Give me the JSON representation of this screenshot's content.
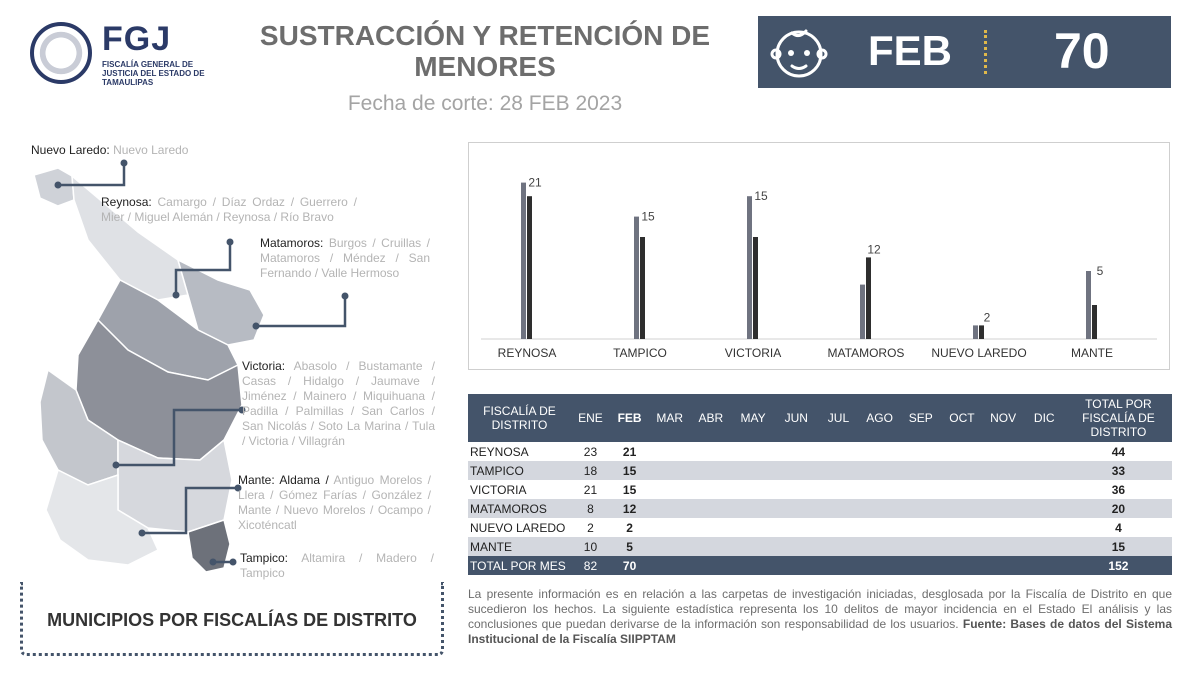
{
  "header": {
    "logo_abbr": "FGJ",
    "logo_sub": "FISCALÍA GENERAL DE JUSTICIA DEL ESTADO DE TAMAULIPAS",
    "title": "SUSTRACCIÓN Y RETENCIÓN DE MENORES",
    "cutoff": "Fecha de corte: 28 FEB 2023"
  },
  "kpi": {
    "month": "FEB",
    "value": "70",
    "icon": "baby-face-icon"
  },
  "colors": {
    "navy": "#44546a",
    "bar_prev": "#6f7380",
    "bar_cur": "#2e2e2e",
    "accent": "#e0b84a"
  },
  "regions": [
    {
      "name": "Nuevo Laredo:",
      "municipalities": "Nuevo Laredo"
    },
    {
      "name": "Reynosa:",
      "municipalities": "Camargo / Díaz Ordaz / Guerrero / Mier / Miguel Alemán / Reynosa / Río Bravo"
    },
    {
      "name": "Matamoros:",
      "municipalities": "Burgos / Cruillas / Matamoros / Méndez / San Fernando / Valle Hermoso"
    },
    {
      "name": "Victoria:",
      "municipalities": "Abasolo / Bustamante / Casas / Hidalgo / Jaumave / Jiménez / Mainero / Miquihuana / Padilla / Palmillas / San Carlos / San Nicolás / Soto La Marina / Tula / Victoria / Villagrán"
    },
    {
      "name": "Mante:",
      "first": "Aldama /",
      "municipalities": "Antiguo Morelos / Llera / Gómez Farías / González / Mante / Nuevo Morelos / Ocampo / Xicoténcatl"
    },
    {
      "name": "Tampico:",
      "municipalities": "Altamira / Madero / Tampico"
    }
  ],
  "map_caption": "MUNICIPIOS POR FISCALÍAS DE DISTRITO",
  "chart_data": {
    "type": "bar",
    "categories": [
      "REYNOSA",
      "TAMPICO",
      "VICTORIA",
      "MATAMOROS",
      "NUEVO LAREDO",
      "MANTE"
    ],
    "series": [
      {
        "values": [
          23,
          18,
          21,
          8,
          2,
          10
        ]
      },
      {
        "values": [
          21,
          15,
          15,
          12,
          2,
          5
        ]
      }
    ],
    "data_labels": [
      "21",
      "15",
      "15",
      "12",
      "2",
      "5"
    ],
    "ylim": [
      0,
      25
    ],
    "grid": false
  },
  "table": {
    "headers": [
      "FISCALÍA DE DISTRITO",
      "ENE",
      "FEB",
      "MAR",
      "ABR",
      "MAY",
      "JUN",
      "JUL",
      "AGO",
      "SEP",
      "OCT",
      "NOV",
      "DIC",
      "TOTAL POR FISCALÍA DE DISTRITO"
    ],
    "rows": [
      {
        "name": "REYNOSA",
        "ene": "23",
        "feb": "21",
        "total": "44"
      },
      {
        "name": "TAMPICO",
        "ene": "18",
        "feb": "15",
        "total": "33"
      },
      {
        "name": "VICTORIA",
        "ene": "21",
        "feb": "15",
        "total": "36"
      },
      {
        "name": "MATAMOROS",
        "ene": "8",
        "feb": "12",
        "total": "20"
      },
      {
        "name": "NUEVO LAREDO",
        "ene": "2",
        "feb": "2",
        "total": "4"
      },
      {
        "name": "MANTE",
        "ene": "10",
        "feb": "5",
        "total": "15"
      }
    ],
    "total_row": {
      "name": "TOTAL POR MES",
      "ene": "82",
      "feb": "70",
      "total": "152"
    }
  },
  "note": {
    "text": "La presente información es en relación a las carpetas de investigación iniciadas, desglosada por la Fiscalía de Distrito en que sucedieron los hechos. La siguiente estadística representa los 10 delitos de mayor incidencia en el Estado El análisis y las conclusiones que puedan derivarse de la información son responsabilidad de los usuarios. ",
    "source_label": "Fuente:",
    "source_text": " Bases de datos del Sistema Institucional  de la Fiscalía SIIPPTAM"
  }
}
